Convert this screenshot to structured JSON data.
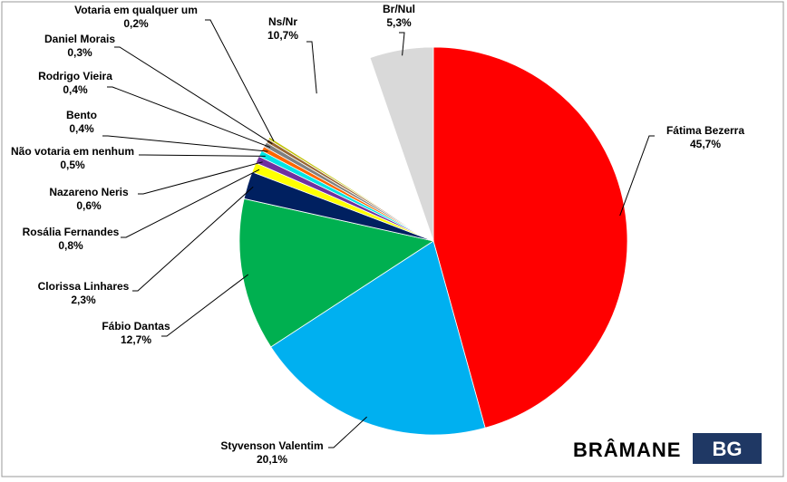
{
  "chart_data": {
    "type": "pie",
    "categories": [
      "Fátima Bezerra",
      "Styvenson Valentim",
      "Fábio Dantas",
      "Clorissa Linhares",
      "Rosália Fernandes",
      "Nazareno Neris",
      "Não votaria em nenhum",
      "Bento",
      "Rodrigo Vieira",
      "Daniel Morais",
      "Votaria em qualquer um",
      "Ns/Nr",
      "Br/Nul"
    ],
    "values": [
      45.7,
      20.1,
      12.7,
      2.3,
      0.8,
      0.6,
      0.5,
      0.4,
      0.4,
      0.3,
      0.2,
      10.7,
      5.3
    ],
    "value_labels": [
      "45,7%",
      "20,1%",
      "12,7%",
      "2,3%",
      "0,8%",
      "0,6%",
      "0,5%",
      "0,4%",
      "0,4%",
      "0,3%",
      "0,2%",
      "10,7%",
      "5,3%"
    ],
    "colors": [
      "#ff0000",
      "#00b0f0",
      "#00b050",
      "#002060",
      "#ffff00",
      "#7030a0",
      "#00e5e5",
      "#ff6600",
      "#808080",
      "#996633",
      "#c0c000",
      "#ffffff",
      "#d9d9d9"
    ],
    "watermark": {
      "text": "BRÂMANE",
      "badge": "BG"
    }
  }
}
